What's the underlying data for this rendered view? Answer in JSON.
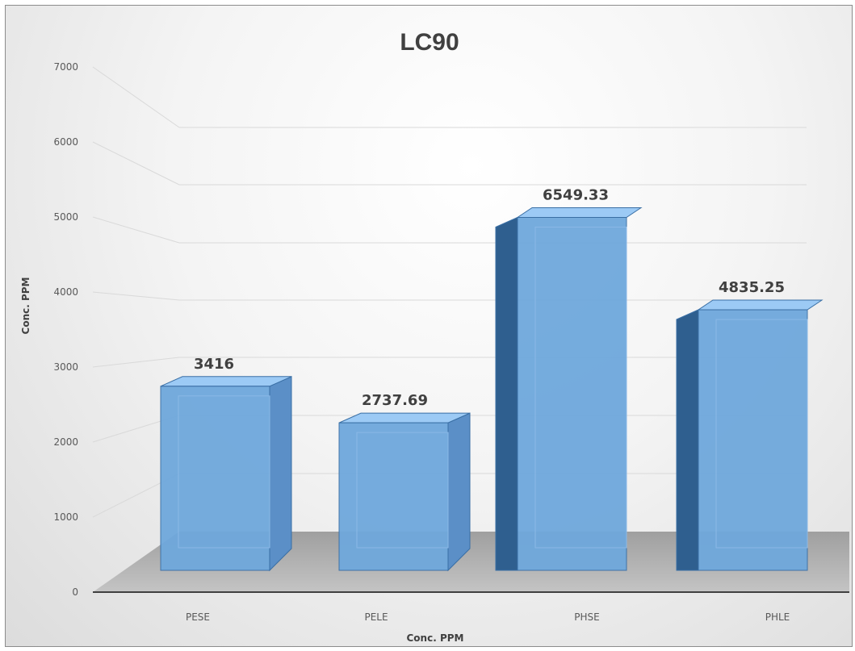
{
  "chart_data": {
    "type": "bar",
    "title": "LC90",
    "xlabel": "Conc. PPM",
    "ylabel": "Conc. PPM",
    "categories": [
      "PESE",
      "PELE",
      "PHSE",
      "PHLE"
    ],
    "values": [
      3416,
      2737.69,
      6549.33,
      4835.25
    ],
    "data_labels": [
      "3416",
      "2737.69",
      "6549.33",
      "4835.25"
    ],
    "y_ticks": [
      "0",
      "1000",
      "2000",
      "3000",
      "4000",
      "5000",
      "6000",
      "7000"
    ],
    "ylim": [
      0,
      7000
    ],
    "grid": true,
    "legend": "none",
    "style": "3d-clustered-column",
    "colors": {
      "bar_front": "#6fa8dc",
      "bar_front_highlight": "#9ccaf5",
      "bar_side_dark": "#2f5f8f",
      "bar_side_light": "#5b8fc7",
      "floor": "#b4b4b4",
      "gridline": "#d9d9d9"
    }
  }
}
